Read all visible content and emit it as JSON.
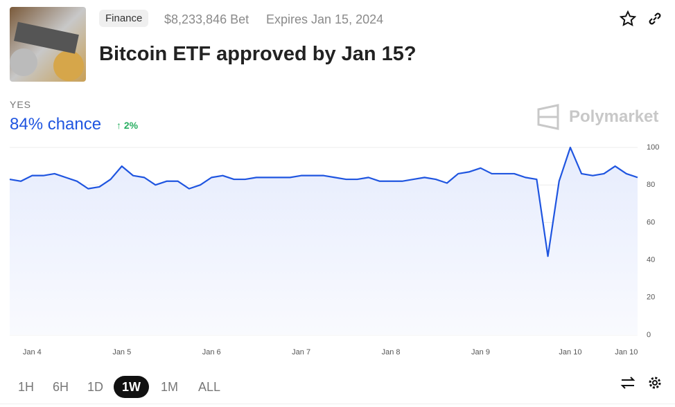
{
  "header": {
    "tag": "Finance",
    "volume": "$8,233,846 Bet",
    "expires": "Expires Jan 15, 2024",
    "title": "Bitcoin ETF approved by Jan 15?"
  },
  "outcome": {
    "label": "YES",
    "chance": "84% chance",
    "change": "2%",
    "brand": "Polymarket"
  },
  "ranges": [
    "1H",
    "6H",
    "1D",
    "1W",
    "1M",
    "ALL"
  ],
  "selected_range": "1W",
  "chart_data": {
    "type": "line",
    "color": "#1f55e0",
    "categories": [
      null,
      null,
      "Jan 4",
      null,
      null,
      null,
      null,
      null,
      null,
      null,
      "Jan 5",
      null,
      null,
      null,
      null,
      null,
      null,
      null,
      "Jan 6",
      null,
      null,
      null,
      null,
      null,
      null,
      null,
      "Jan 7",
      null,
      null,
      null,
      null,
      null,
      null,
      null,
      "Jan 8",
      null,
      null,
      null,
      null,
      null,
      null,
      null,
      "Jan 9",
      null,
      null,
      null,
      null,
      null,
      null,
      null,
      "Jan 10",
      null,
      null,
      null,
      null,
      "Jan 10",
      null
    ],
    "values": [
      83,
      82,
      85,
      85,
      86,
      84,
      82,
      78,
      79,
      83,
      90,
      85,
      84,
      80,
      82,
      82,
      78,
      80,
      84,
      85,
      83,
      83,
      84,
      84,
      84,
      84,
      85,
      85,
      85,
      84,
      83,
      83,
      84,
      82,
      82,
      82,
      83,
      84,
      83,
      81,
      86,
      87,
      89,
      86,
      86,
      86,
      84,
      83,
      42,
      82,
      100,
      86,
      85,
      86,
      90,
      86,
      84
    ],
    "ylim": [
      0,
      100
    ],
    "yticks": [
      0,
      20,
      40,
      60,
      80,
      100
    ],
    "grid": true
  }
}
